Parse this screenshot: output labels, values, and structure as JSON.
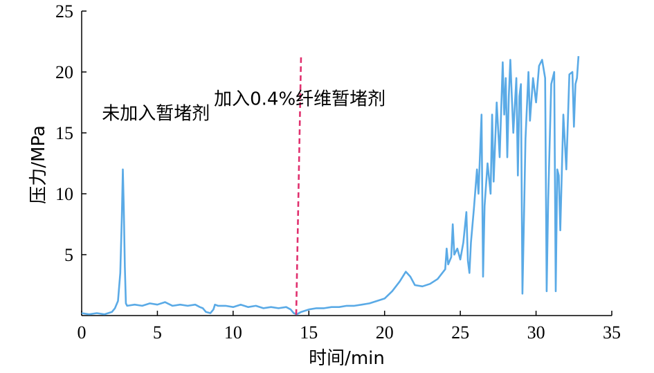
{
  "chart_data": {
    "type": "line",
    "title": "",
    "xlabel": "时间/min",
    "ylabel": "压力/MPa",
    "xlim": [
      0,
      35
    ],
    "ylim": [
      0,
      25
    ],
    "x_ticks": [
      0,
      5,
      10,
      15,
      20,
      25,
      30,
      35
    ],
    "y_ticks": [
      5,
      10,
      15,
      20,
      25
    ],
    "grid": false,
    "legend": "none",
    "series": [
      {
        "color": "#5aaae6",
        "points": [
          [
            0.0,
            0.2
          ],
          [
            0.5,
            0.1
          ],
          [
            1.0,
            0.2
          ],
          [
            1.5,
            0.1
          ],
          [
            2.0,
            0.3
          ],
          [
            2.2,
            0.6
          ],
          [
            2.4,
            1.2
          ],
          [
            2.55,
            3.5
          ],
          [
            2.65,
            8.0
          ],
          [
            2.72,
            12.0
          ],
          [
            2.78,
            9.0
          ],
          [
            2.85,
            4.0
          ],
          [
            2.92,
            1.0
          ],
          [
            3.0,
            0.8
          ],
          [
            3.5,
            0.9
          ],
          [
            4.0,
            0.8
          ],
          [
            4.5,
            1.0
          ],
          [
            5.0,
            0.9
          ],
          [
            5.5,
            1.1
          ],
          [
            6.0,
            0.8
          ],
          [
            6.5,
            0.9
          ],
          [
            7.0,
            0.8
          ],
          [
            7.5,
            0.9
          ],
          [
            7.8,
            0.7
          ],
          [
            8.0,
            0.6
          ],
          [
            8.2,
            0.3
          ],
          [
            8.5,
            0.2
          ],
          [
            8.7,
            0.5
          ],
          [
            8.8,
            0.9
          ],
          [
            9.0,
            0.8
          ],
          [
            9.5,
            0.8
          ],
          [
            10.0,
            0.7
          ],
          [
            10.5,
            0.9
          ],
          [
            11.0,
            0.7
          ],
          [
            11.5,
            0.8
          ],
          [
            12.0,
            0.6
          ],
          [
            12.5,
            0.7
          ],
          [
            13.0,
            0.6
          ],
          [
            13.5,
            0.7
          ],
          [
            13.8,
            0.5
          ],
          [
            14.0,
            0.2
          ],
          [
            14.2,
            0.1
          ],
          [
            14.5,
            0.3
          ],
          [
            15.0,
            0.5
          ],
          [
            15.5,
            0.6
          ],
          [
            16.0,
            0.6
          ],
          [
            16.5,
            0.7
          ],
          [
            17.0,
            0.7
          ],
          [
            17.5,
            0.8
          ],
          [
            18.0,
            0.8
          ],
          [
            18.5,
            0.9
          ],
          [
            19.0,
            1.0
          ],
          [
            19.5,
            1.2
          ],
          [
            20.0,
            1.4
          ],
          [
            20.5,
            2.0
          ],
          [
            21.0,
            2.8
          ],
          [
            21.4,
            3.6
          ],
          [
            21.7,
            3.2
          ],
          [
            22.0,
            2.5
          ],
          [
            22.5,
            2.4
          ],
          [
            23.0,
            2.6
          ],
          [
            23.5,
            3.0
          ],
          [
            24.0,
            3.8
          ],
          [
            24.1,
            5.5
          ],
          [
            24.2,
            4.2
          ],
          [
            24.4,
            4.8
          ],
          [
            24.5,
            7.5
          ],
          [
            24.6,
            5.0
          ],
          [
            24.8,
            5.5
          ],
          [
            25.0,
            4.6
          ],
          [
            25.2,
            6.0
          ],
          [
            25.4,
            8.5
          ],
          [
            25.5,
            4.5
          ],
          [
            25.6,
            3.5
          ],
          [
            25.7,
            6.0
          ],
          [
            25.9,
            8.8
          ],
          [
            26.1,
            12.0
          ],
          [
            26.2,
            10.0
          ],
          [
            26.4,
            16.5
          ],
          [
            26.5,
            3.2
          ],
          [
            26.6,
            9.0
          ],
          [
            26.8,
            12.5
          ],
          [
            27.0,
            10.0
          ],
          [
            27.1,
            16.5
          ],
          [
            27.2,
            11.0
          ],
          [
            27.4,
            17.5
          ],
          [
            27.6,
            13.0
          ],
          [
            27.8,
            20.8
          ],
          [
            27.9,
            16.5
          ],
          [
            28.0,
            19.5
          ],
          [
            28.1,
            13.0
          ],
          [
            28.2,
            18.0
          ],
          [
            28.3,
            21.0
          ],
          [
            28.5,
            15.0
          ],
          [
            28.7,
            19.5
          ],
          [
            28.8,
            11.5
          ],
          [
            28.9,
            18.0
          ],
          [
            29.0,
            19.0
          ],
          [
            29.1,
            1.8
          ],
          [
            29.2,
            8.0
          ],
          [
            29.3,
            14.5
          ],
          [
            29.5,
            20.0
          ],
          [
            29.6,
            16.0
          ],
          [
            29.8,
            19.5
          ],
          [
            30.0,
            17.5
          ],
          [
            30.2,
            20.5
          ],
          [
            30.4,
            21.0
          ],
          [
            30.6,
            19.5
          ],
          [
            30.7,
            2.0
          ],
          [
            30.8,
            9.5
          ],
          [
            31.0,
            19.0
          ],
          [
            31.2,
            20.0
          ],
          [
            31.3,
            2.0
          ],
          [
            31.4,
            12.0
          ],
          [
            31.5,
            11.5
          ],
          [
            31.6,
            7.0
          ],
          [
            31.8,
            16.5
          ],
          [
            32.0,
            12.0
          ],
          [
            32.2,
            19.8
          ],
          [
            32.4,
            20.0
          ],
          [
            32.5,
            15.5
          ],
          [
            32.6,
            19.0
          ],
          [
            32.7,
            19.5
          ],
          [
            32.8,
            21.3
          ]
        ]
      }
    ],
    "marker_line": {
      "x": 14.3,
      "y_top": 21.2,
      "y_bottom": 0.0,
      "color": "#e0306e",
      "style": "dashed"
    },
    "annotations": [
      {
        "text": "未加入暂堵剂",
        "x": 4.9,
        "y": 16.1
      },
      {
        "text": "加入0.4%纤维暂堵剂",
        "x": 14.4,
        "y": 17.3
      }
    ]
  }
}
